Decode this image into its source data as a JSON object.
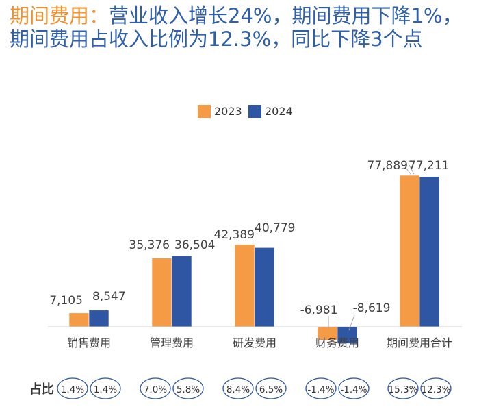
{
  "title": {
    "highlight": "期间费用：",
    "rest": "营业收入增长24%，期间费用下降1%，期间费用占收入比例为12.3%，同比下降3个点"
  },
  "colors": {
    "y2023": "#f59a45",
    "y2024": "#2f56a3",
    "title_highlight": "#f0912f",
    "title_main": "#2f5fa8"
  },
  "chart_data": {
    "type": "bar",
    "categories": [
      "销售费用",
      "管理费用",
      "研发费用",
      "财务费用",
      "期间费用合计"
    ],
    "series": [
      {
        "name": "2023",
        "values": [
          7105,
          35376,
          42389,
          -6981,
          77889
        ],
        "labels": [
          "7,105",
          "35,376",
          "42,389",
          "-6,981",
          "77,889"
        ]
      },
      {
        "name": "2024",
        "values": [
          8547,
          36504,
          40779,
          -8619,
          77211
        ],
        "labels": [
          "8,547",
          "36,504",
          "40,779",
          "-8,619",
          "77,211"
        ]
      }
    ],
    "ratio_label": "占比",
    "ratios": [
      [
        "1.4%",
        "1.4%"
      ],
      [
        "7.0%",
        "5.8%"
      ],
      [
        "8.4%",
        "6.5%"
      ],
      [
        "-1.4%",
        "-1.4%"
      ],
      [
        "15.3%",
        "12.3%"
      ]
    ],
    "ylim": [
      -10000,
      80000
    ],
    "legend_position": "top-center"
  }
}
